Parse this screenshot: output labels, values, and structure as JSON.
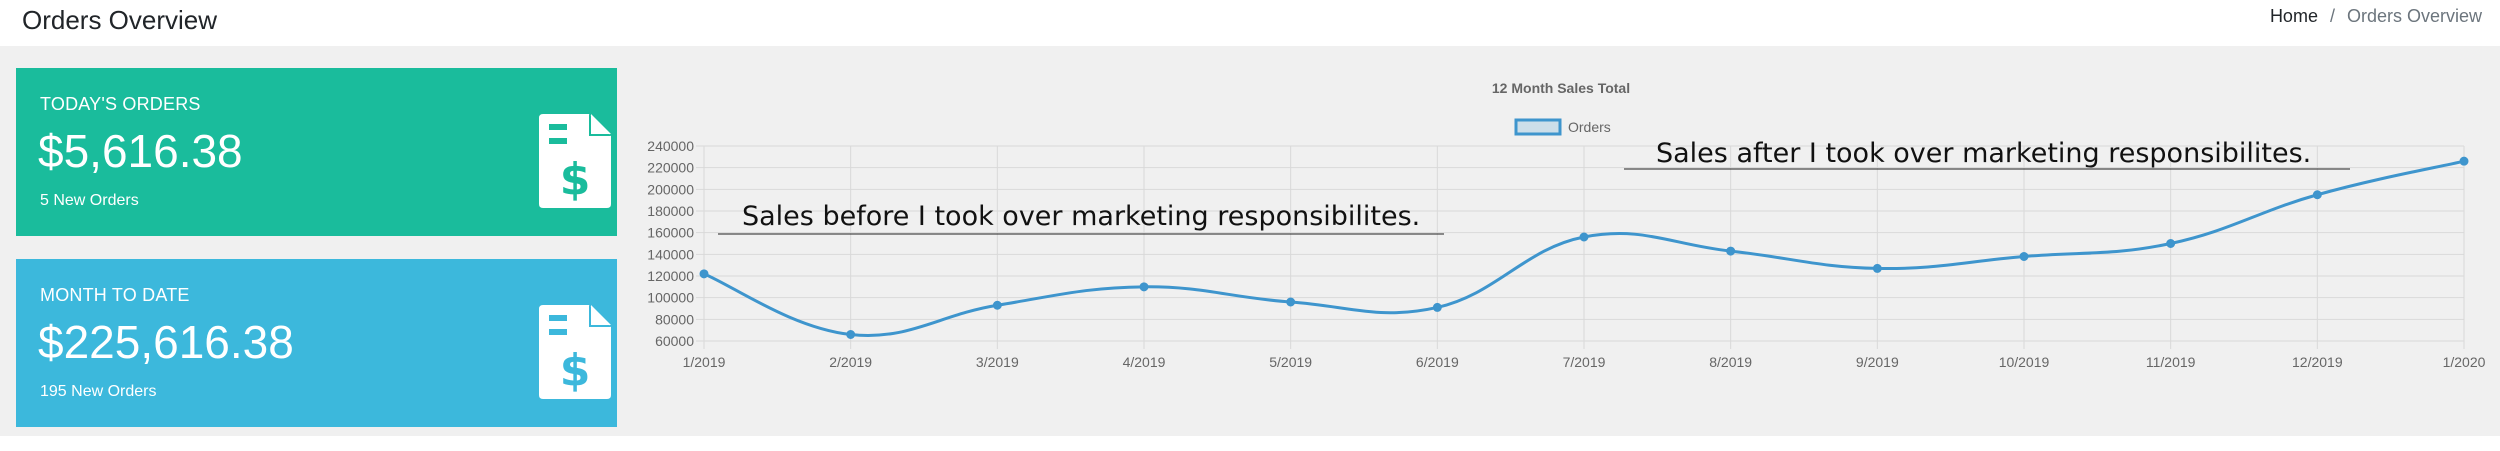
{
  "header": {
    "title": "Orders Overview",
    "breadcrumb": {
      "home": "Home",
      "separator": "/",
      "current": "Orders Overview"
    }
  },
  "cards": [
    {
      "label": "TODAY'S ORDERS",
      "value": "$5,616.38",
      "sub": "5 New Orders",
      "icon": "invoice-dollar-icon",
      "color": "#1abc9c"
    },
    {
      "label": "MONTH TO DATE",
      "value": "$225,616.38",
      "sub": "195 New Orders",
      "icon": "invoice-dollar-icon",
      "color": "#3cb8dc"
    }
  ],
  "chart_data": {
    "type": "line",
    "title": "12 Month Sales Total",
    "legend": {
      "position": "top",
      "entries": [
        "Orders"
      ]
    },
    "categories": [
      "1/2019",
      "2/2019",
      "3/2019",
      "4/2019",
      "5/2019",
      "6/2019",
      "7/2019",
      "8/2019",
      "9/2019",
      "10/2019",
      "11/2019",
      "12/2019",
      "1/2020"
    ],
    "series": [
      {
        "name": "Orders",
        "color": "#3e95cd",
        "values": [
          122000,
          66000,
          93000,
          110000,
          96000,
          91000,
          156000,
          143000,
          127000,
          138000,
          150000,
          195000,
          226000
        ]
      }
    ],
    "ylim": [
      60000,
      240000
    ],
    "yticks": [
      60000,
      80000,
      100000,
      120000,
      140000,
      160000,
      180000,
      200000,
      220000,
      240000
    ],
    "grid": true,
    "annotations": [
      "Sales before I took  over marketing responsibilites.",
      "Sales after I took  over marketing responsibilites."
    ]
  }
}
